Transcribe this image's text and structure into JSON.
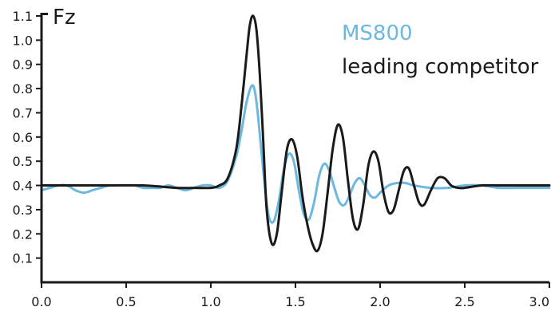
{
  "chart_data": {
    "type": "line",
    "ylabel": "Fz",
    "xlabel": "",
    "xlim": [
      0,
      3.0
    ],
    "ylim": [
      0,
      1.1
    ],
    "grid": false,
    "legend_placement": "top-right",
    "x_ticks": [
      "0.0",
      "0.5",
      "1.0",
      "1.5",
      "2.0",
      "2.5",
      "3.0"
    ],
    "y_ticks": [
      "0.1",
      "0.2",
      "0.3",
      "0.4",
      "0.5",
      "0.6",
      "0.7",
      "0.8",
      "0.9",
      "1.0",
      "1.1"
    ],
    "series": [
      {
        "name": "MS800",
        "color": "#6cb8de",
        "x": [
          0.0,
          0.05,
          0.1,
          0.15,
          0.2,
          0.25,
          0.3,
          0.35,
          0.4,
          0.45,
          0.5,
          0.55,
          0.6,
          0.65,
          0.7,
          0.75,
          0.8,
          0.85,
          0.9,
          0.95,
          1.0,
          1.05,
          1.1,
          1.15,
          1.18,
          1.21,
          1.24,
          1.26,
          1.28,
          1.31,
          1.34,
          1.37,
          1.4,
          1.43,
          1.46,
          1.49,
          1.52,
          1.55,
          1.58,
          1.61,
          1.64,
          1.67,
          1.7,
          1.73,
          1.76,
          1.79,
          1.82,
          1.85,
          1.88,
          1.91,
          1.94,
          1.97,
          2.0,
          2.05,
          2.1,
          2.15,
          2.2,
          2.3,
          2.4,
          2.5,
          2.6,
          2.7,
          2.8,
          2.9,
          3.0
        ],
        "y": [
          0.38,
          0.39,
          0.4,
          0.4,
          0.38,
          0.37,
          0.38,
          0.39,
          0.4,
          0.4,
          0.4,
          0.4,
          0.39,
          0.39,
          0.39,
          0.4,
          0.39,
          0.38,
          0.39,
          0.4,
          0.4,
          0.39,
          0.42,
          0.52,
          0.62,
          0.74,
          0.81,
          0.79,
          0.68,
          0.46,
          0.28,
          0.25,
          0.33,
          0.46,
          0.53,
          0.5,
          0.38,
          0.28,
          0.26,
          0.33,
          0.44,
          0.49,
          0.46,
          0.39,
          0.33,
          0.32,
          0.36,
          0.41,
          0.43,
          0.4,
          0.36,
          0.35,
          0.37,
          0.4,
          0.41,
          0.41,
          0.4,
          0.39,
          0.39,
          0.4,
          0.4,
          0.39,
          0.39,
          0.39,
          0.39
        ]
      },
      {
        "name": "leading competitor",
        "color": "#1a1a1a",
        "x": [
          0.0,
          0.2,
          0.4,
          0.6,
          0.8,
          0.9,
          1.0,
          1.05,
          1.1,
          1.15,
          1.18,
          1.21,
          1.23,
          1.25,
          1.27,
          1.29,
          1.31,
          1.33,
          1.36,
          1.39,
          1.42,
          1.45,
          1.48,
          1.51,
          1.54,
          1.57,
          1.6,
          1.63,
          1.66,
          1.69,
          1.72,
          1.75,
          1.78,
          1.81,
          1.84,
          1.87,
          1.9,
          1.93,
          1.96,
          1.99,
          2.02,
          2.05,
          2.08,
          2.11,
          2.14,
          2.17,
          2.2,
          2.23,
          2.26,
          2.3,
          2.34,
          2.38,
          2.42,
          2.46,
          2.5,
          2.6,
          2.7,
          2.8,
          2.9,
          3.0
        ],
        "y": [
          0.4,
          0.4,
          0.4,
          0.4,
          0.39,
          0.39,
          0.39,
          0.4,
          0.43,
          0.55,
          0.72,
          0.93,
          1.06,
          1.1,
          1.04,
          0.85,
          0.58,
          0.3,
          0.16,
          0.2,
          0.38,
          0.55,
          0.59,
          0.52,
          0.36,
          0.24,
          0.16,
          0.13,
          0.2,
          0.37,
          0.55,
          0.65,
          0.6,
          0.42,
          0.26,
          0.22,
          0.32,
          0.48,
          0.54,
          0.5,
          0.37,
          0.29,
          0.3,
          0.38,
          0.46,
          0.47,
          0.4,
          0.33,
          0.32,
          0.38,
          0.43,
          0.43,
          0.4,
          0.39,
          0.39,
          0.4,
          0.4,
          0.4,
          0.4,
          0.4
        ]
      }
    ]
  }
}
